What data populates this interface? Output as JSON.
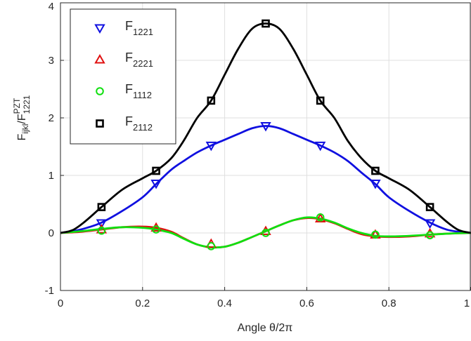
{
  "chart_data": {
    "type": "line",
    "xlabel": "Angle θ/2π",
    "ylabel": {
      "main": "F",
      "main_sub": "ijkl",
      "slash": "/F",
      "den_sup": "PZT",
      "den_sub": "1221"
    },
    "xlim": [
      0,
      1
    ],
    "ylim": [
      -1,
      4
    ],
    "xticks": [
      "0",
      "0.2",
      "0.4",
      "0.6",
      "0.8",
      "1"
    ],
    "yticks": [
      "-1",
      "0",
      "1",
      "2",
      "3",
      "4"
    ],
    "grid": true,
    "legend_position": "top-left",
    "series": [
      {
        "name": "F_1221",
        "label_main": "F",
        "label_sub": "1221",
        "color": "#1010e0",
        "marker": "triangle-down",
        "curve_x": [
          0,
          0.03,
          0.06,
          0.1,
          0.15,
          0.2,
          0.233,
          0.27,
          0.3,
          0.333,
          0.367,
          0.4,
          0.433,
          0.467,
          0.5,
          0.533,
          0.567,
          0.6,
          0.633,
          0.667,
          0.7,
          0.733,
          0.767,
          0.8,
          0.85,
          0.9,
          0.94,
          0.97,
          1
        ],
        "curve_y": [
          0,
          0.03,
          0.08,
          0.18,
          0.38,
          0.62,
          0.85,
          1.1,
          1.25,
          1.4,
          1.52,
          1.62,
          1.72,
          1.82,
          1.86,
          1.82,
          1.72,
          1.62,
          1.52,
          1.4,
          1.25,
          1.05,
          0.85,
          0.62,
          0.38,
          0.18,
          0.06,
          0.02,
          0
        ],
        "marker_x": [
          0.1,
          0.233,
          0.367,
          0.5,
          0.633,
          0.767,
          0.9
        ],
        "marker_y": [
          0.17,
          0.86,
          1.52,
          1.86,
          1.52,
          0.86,
          0.17
        ]
      },
      {
        "name": "F_2221",
        "label_main": "F",
        "label_sub": "2221",
        "color": "#e01010",
        "marker": "triangle-up",
        "curve_x": [
          0,
          0.05,
          0.1,
          0.15,
          0.2,
          0.233,
          0.27,
          0.3,
          0.333,
          0.367,
          0.4,
          0.433,
          0.467,
          0.5,
          0.533,
          0.567,
          0.6,
          0.633,
          0.667,
          0.7,
          0.733,
          0.767,
          0.8,
          0.85,
          0.9,
          0.95,
          1
        ],
        "curve_y": [
          0,
          0.02,
          0.06,
          0.1,
          0.11,
          0.09,
          0.02,
          -0.09,
          -0.2,
          -0.25,
          -0.24,
          -0.17,
          -0.07,
          0.03,
          0.13,
          0.22,
          0.26,
          0.24,
          0.17,
          0.07,
          -0.02,
          -0.06,
          -0.07,
          -0.06,
          -0.03,
          -0.01,
          0
        ],
        "marker_x": [
          0.1,
          0.233,
          0.367,
          0.5,
          0.633,
          0.767,
          0.9
        ],
        "marker_y": [
          0.06,
          0.09,
          -0.19,
          0.03,
          0.25,
          -0.03,
          -0.01
        ]
      },
      {
        "name": "F_1112",
        "label_main": "F",
        "label_sub": "1112",
        "color": "#10e010",
        "marker": "circle",
        "curve_x": [
          0,
          0.05,
          0.1,
          0.15,
          0.2,
          0.233,
          0.27,
          0.3,
          0.333,
          0.367,
          0.4,
          0.433,
          0.467,
          0.5,
          0.533,
          0.567,
          0.6,
          0.633,
          0.667,
          0.7,
          0.733,
          0.767,
          0.8,
          0.85,
          0.9,
          0.95,
          1
        ],
        "curve_y": [
          0,
          0.03,
          0.07,
          0.1,
          0.09,
          0.06,
          0,
          -0.1,
          -0.2,
          -0.25,
          -0.24,
          -0.17,
          -0.07,
          0.03,
          0.13,
          0.22,
          0.27,
          0.25,
          0.18,
          0.08,
          0,
          -0.05,
          -0.06,
          -0.05,
          -0.03,
          -0.01,
          0
        ],
        "marker_x": [
          0.1,
          0.233,
          0.367,
          0.5,
          0.633,
          0.767,
          0.9
        ],
        "marker_y": [
          0.04,
          0.06,
          -0.23,
          0.0,
          0.27,
          -0.03,
          -0.04
        ]
      },
      {
        "name": "F_2112",
        "label_main": "F",
        "label_sub": "2112",
        "color": "#000000",
        "marker": "square",
        "curve_x": [
          0,
          0.03,
          0.06,
          0.1,
          0.15,
          0.2,
          0.233,
          0.27,
          0.3,
          0.333,
          0.367,
          0.4,
          0.433,
          0.467,
          0.5,
          0.533,
          0.567,
          0.6,
          0.633,
          0.667,
          0.7,
          0.733,
          0.767,
          0.8,
          0.85,
          0.9,
          0.94,
          0.97,
          1
        ],
        "curve_y": [
          0,
          0.05,
          0.2,
          0.45,
          0.75,
          0.95,
          1.08,
          1.3,
          1.6,
          2.0,
          2.3,
          2.75,
          3.2,
          3.55,
          3.64,
          3.55,
          3.2,
          2.75,
          2.3,
          2.0,
          1.6,
          1.3,
          1.08,
          0.95,
          0.75,
          0.45,
          0.2,
          0.05,
          0
        ],
        "marker_x": [
          0.1,
          0.233,
          0.367,
          0.5,
          0.633,
          0.767,
          0.9
        ],
        "marker_y": [
          0.45,
          1.08,
          2.3,
          3.64,
          2.3,
          1.08,
          0.45
        ]
      }
    ]
  }
}
